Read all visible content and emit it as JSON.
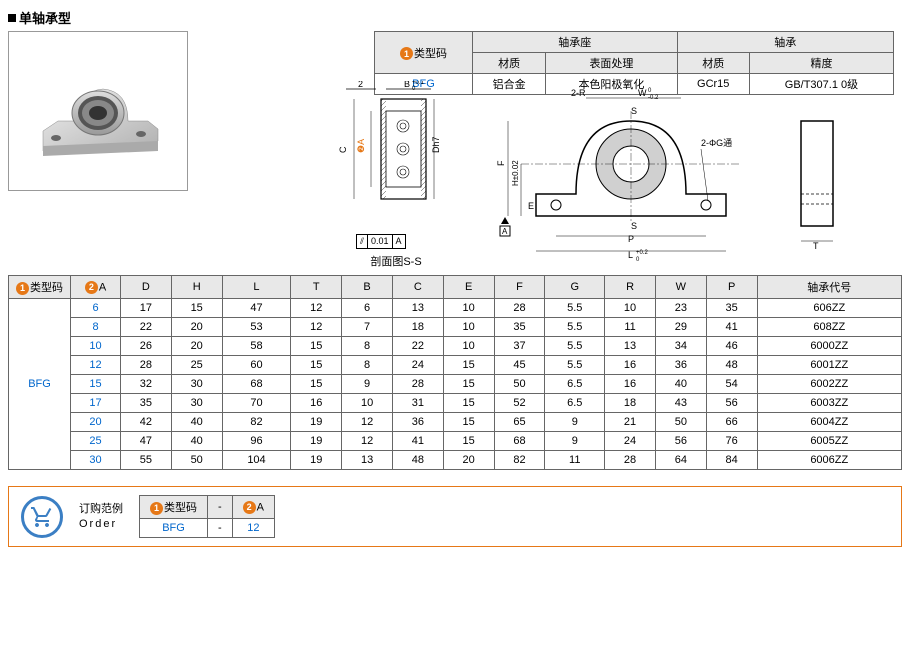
{
  "title": "单轴承型",
  "badges": {
    "num1": "1",
    "num2": "2"
  },
  "material_table": {
    "headers": {
      "type_code": "类型码",
      "seat": "轴承座",
      "bearing": "轴承",
      "material": "材质",
      "surface": "表面处理",
      "precision": "精度"
    },
    "row": {
      "code": "BFG",
      "seat_mat": "铝合金",
      "seat_surf": "本色阳极氧化",
      "bear_mat": "GCr15",
      "bear_prec": "GB/T307.1 0级"
    }
  },
  "diagram": {
    "dim_2": "2",
    "dim_B": "B",
    "tol_B": "+0.1\n 0",
    "dim_C": "C",
    "dim_A": "A",
    "dim_Dh7": "Dh7",
    "sec_label": "剖面图S-S",
    "tol_box1": "0.01",
    "tol_box_A": "A",
    "dim_2R": "2-R",
    "dim_W": "W",
    "tol_W": " 0\n-0.2",
    "dim_S1": "S",
    "dim_S2": "S",
    "dim_2G": "2-ΦG通",
    "dim_F": "F",
    "dim_H": "H±0.02",
    "dim_E": "E",
    "dim_P": "P",
    "dim_L": "L",
    "tol_L": "+0.2\n 0",
    "A_mark": "A",
    "dim_T": "T"
  },
  "spec_table": {
    "headers": [
      "类型码",
      "A",
      "D",
      "H",
      "L",
      "T",
      "B",
      "C",
      "E",
      "F",
      "G",
      "R",
      "W",
      "P",
      "轴承代号"
    ],
    "type_code": "BFG",
    "rows": [
      [
        "6",
        "17",
        "15",
        "47",
        "12",
        "6",
        "13",
        "10",
        "28",
        "5.5",
        "10",
        "23",
        "35",
        "606ZZ"
      ],
      [
        "8",
        "22",
        "20",
        "53",
        "12",
        "7",
        "18",
        "10",
        "35",
        "5.5",
        "11",
        "29",
        "41",
        "608ZZ"
      ],
      [
        "10",
        "26",
        "20",
        "58",
        "15",
        "8",
        "22",
        "10",
        "37",
        "5.5",
        "13",
        "34",
        "46",
        "6000ZZ"
      ],
      [
        "12",
        "28",
        "25",
        "60",
        "15",
        "8",
        "24",
        "15",
        "45",
        "5.5",
        "16",
        "36",
        "48",
        "6001ZZ"
      ],
      [
        "15",
        "32",
        "30",
        "68",
        "15",
        "9",
        "28",
        "15",
        "50",
        "6.5",
        "16",
        "40",
        "54",
        "6002ZZ"
      ],
      [
        "17",
        "35",
        "30",
        "70",
        "16",
        "10",
        "31",
        "15",
        "52",
        "6.5",
        "18",
        "43",
        "56",
        "6003ZZ"
      ],
      [
        "20",
        "42",
        "40",
        "82",
        "19",
        "12",
        "36",
        "15",
        "65",
        "9",
        "21",
        "50",
        "66",
        "6004ZZ"
      ],
      [
        "25",
        "47",
        "40",
        "96",
        "19",
        "12",
        "41",
        "15",
        "68",
        "9",
        "24",
        "56",
        "76",
        "6005ZZ"
      ],
      [
        "30",
        "55",
        "50",
        "104",
        "19",
        "13",
        "48",
        "20",
        "82",
        "11",
        "28",
        "64",
        "84",
        "6006ZZ"
      ]
    ]
  },
  "order": {
    "title_cn": "订购范例",
    "title_en": "Order",
    "headers": {
      "type": "类型码",
      "dash": "-",
      "A": "A"
    },
    "example": {
      "code": "BFG",
      "dash": "-",
      "val": "12"
    }
  },
  "colors": {
    "badge": "#e67817",
    "blue": "#0066cc",
    "border": "#666",
    "header_bg": "#e8e8e8"
  }
}
